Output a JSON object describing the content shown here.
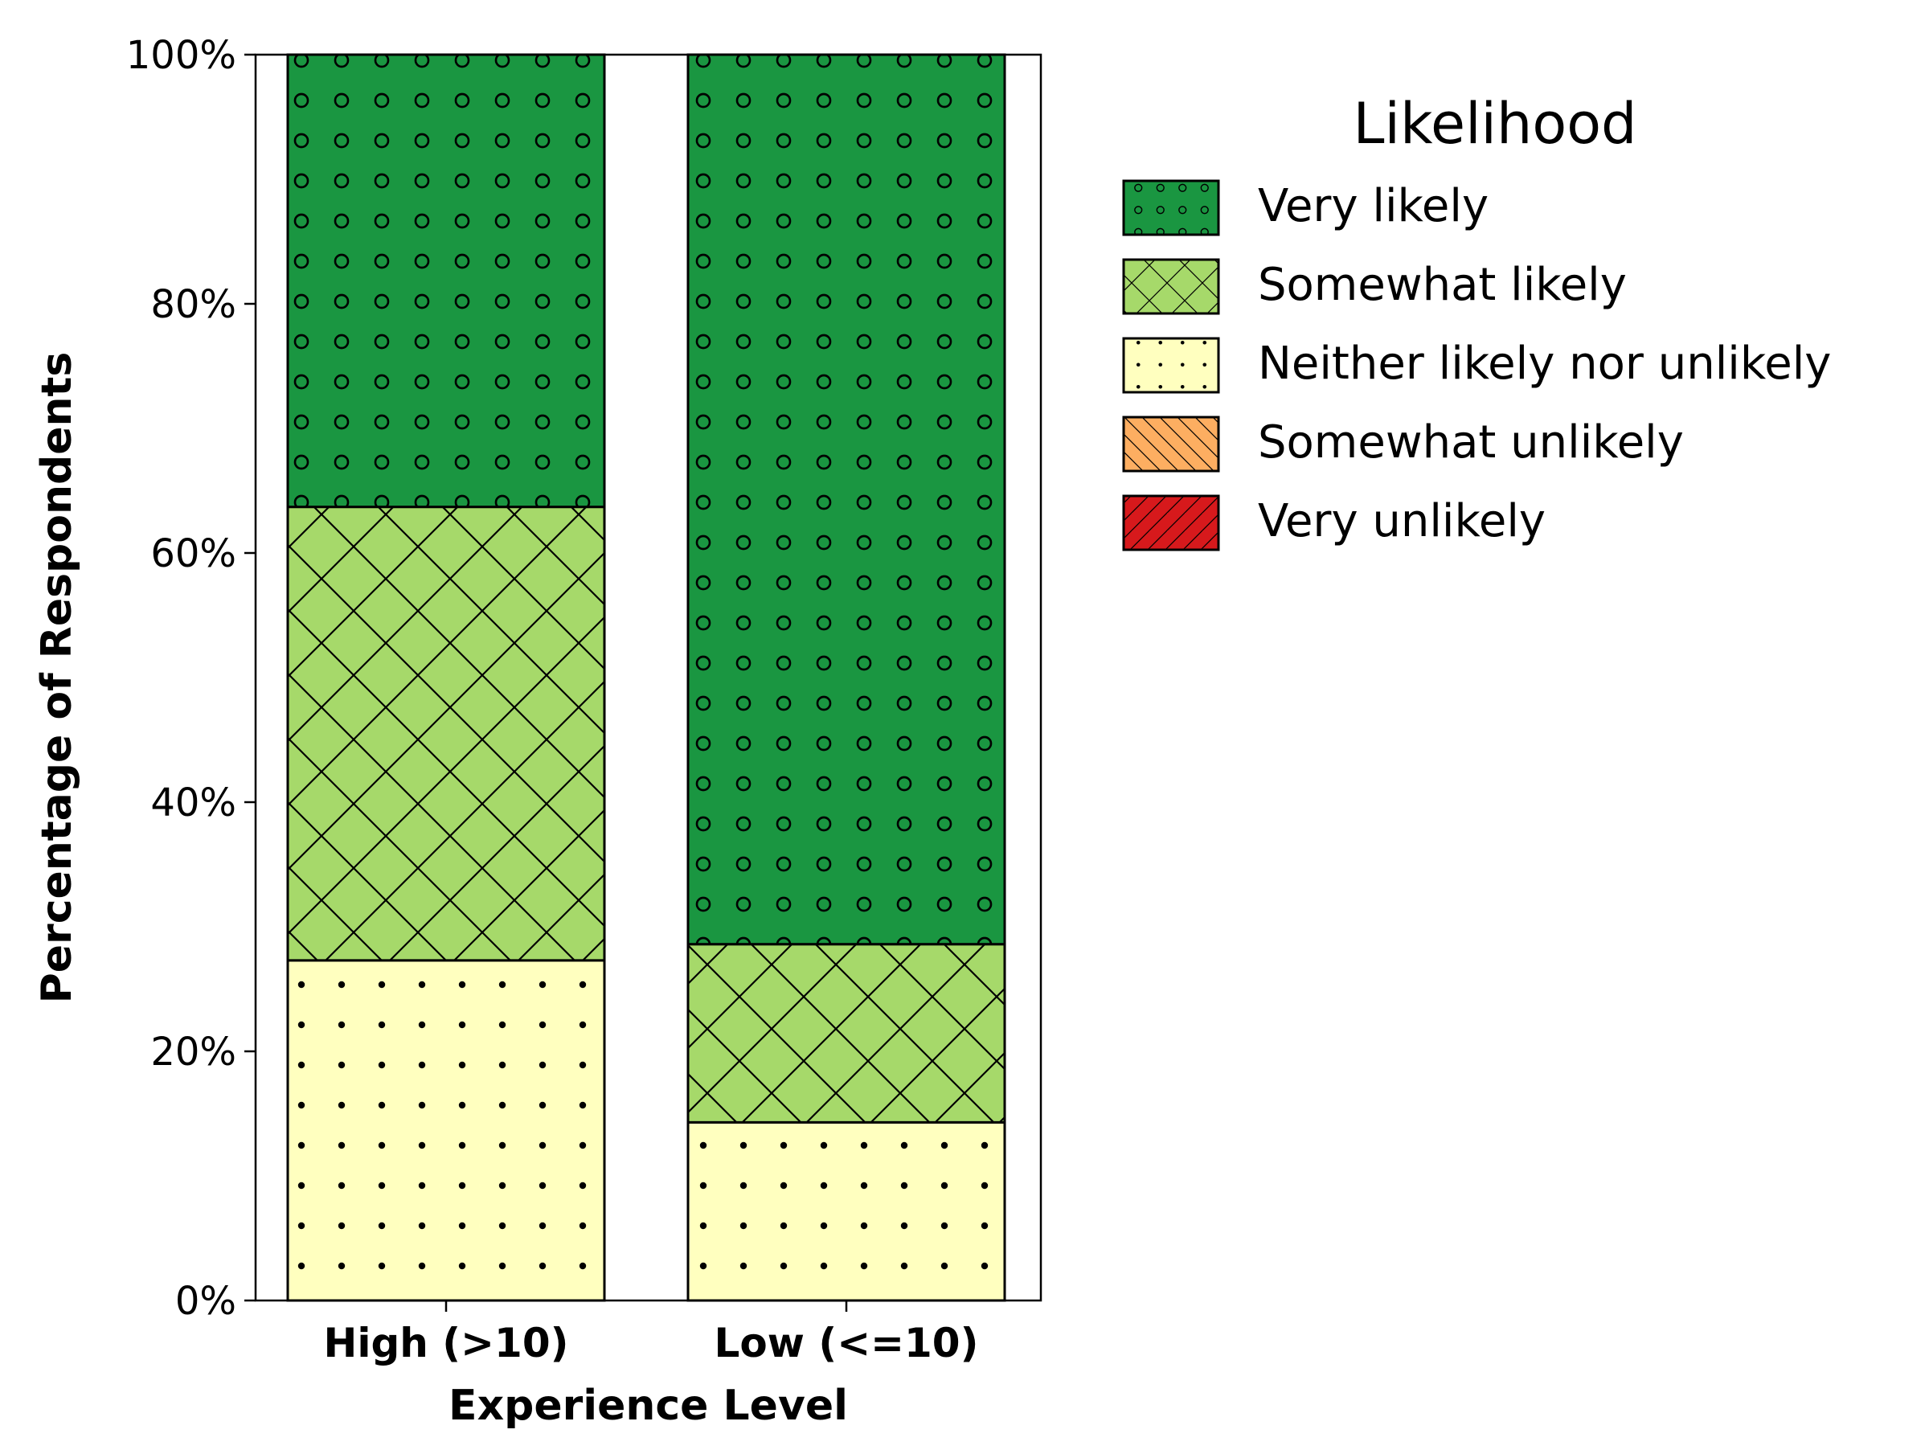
{
  "chart_data": {
    "type": "bar",
    "stacked": true,
    "title": "",
    "xlabel": "Experience Level",
    "ylabel": "Percentage of Respondents",
    "categories": [
      "High (>10)",
      "Low (<=10)"
    ],
    "ylim": [
      0,
      100
    ],
    "yticks": [
      0,
      20,
      40,
      60,
      80,
      100
    ],
    "ytick_labels": [
      "0%",
      "20%",
      "40%",
      "60%",
      "80%",
      "100%"
    ],
    "series": [
      {
        "name": "Neither likely nor unlikely",
        "values": [
          27.3,
          14.3
        ],
        "color": "#ffffbf",
        "hatch": "dots"
      },
      {
        "name": "Somewhat likely",
        "values": [
          36.4,
          14.3
        ],
        "color": "#a6d96a",
        "hatch": "crosshatch"
      },
      {
        "name": "Very likely",
        "values": [
          36.3,
          71.4
        ],
        "color": "#1a9641",
        "hatch": "circles"
      }
    ],
    "legend": {
      "title": "Likelihood",
      "placement": "outside-right",
      "entries": [
        {
          "label": "Very likely",
          "color": "#1a9641",
          "hatch": "circles"
        },
        {
          "label": "Somewhat likely",
          "color": "#a6d96a",
          "hatch": "crosshatch"
        },
        {
          "label": "Neither likely nor unlikely",
          "color": "#ffffbf",
          "hatch": "dots"
        },
        {
          "label": "Somewhat unlikely",
          "color": "#fdae61",
          "hatch": "backslash"
        },
        {
          "label": "Very unlikely",
          "color": "#d7191c",
          "hatch": "slash"
        }
      ]
    },
    "grid": false
  }
}
